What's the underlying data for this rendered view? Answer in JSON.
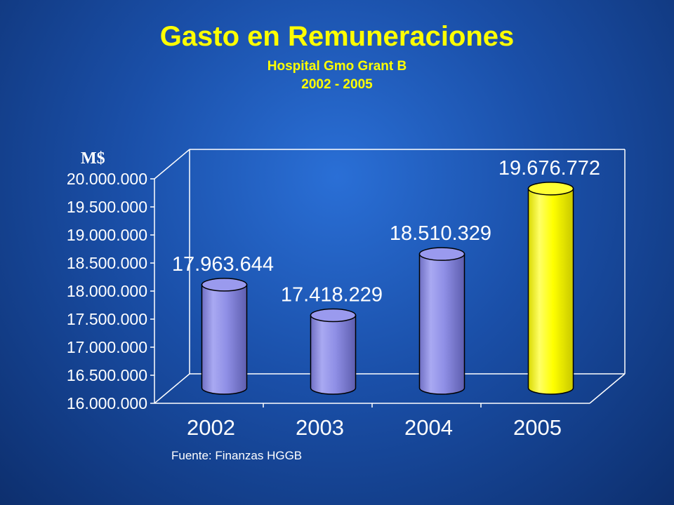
{
  "slide": {
    "title": "Gasto en Remuneraciones",
    "subtitle": "Hospital Gmo Grant B",
    "period": "2002 - 2005",
    "source": "Fuente: Finanzas HGGB"
  },
  "colors": {
    "title": "#ffff00",
    "bar": "#8f8fe6",
    "bar_highlight": "#ffff00",
    "text": "#ffffff"
  },
  "chart_data": {
    "type": "bar",
    "style": "3d-cylinder",
    "categories": [
      "2002",
      "2003",
      "2004",
      "2005"
    ],
    "values": [
      17963644,
      17418229,
      18510329,
      19676772
    ],
    "value_labels": [
      "17.963.644",
      "17.418.229",
      "18.510.329",
      "19.676.772"
    ],
    "highlight_index": 3,
    "ylabel": "M$",
    "ylim": [
      16000000,
      20000000
    ],
    "yticks": [
      16000000,
      16500000,
      17000000,
      17500000,
      18000000,
      18500000,
      19000000,
      19500000,
      20000000
    ],
    "ytick_labels": [
      "16.000.000",
      "16.500.000",
      "17.000.000",
      "17.500.000",
      "18.000.000",
      "18.500.000",
      "19.000.000",
      "19.500.000",
      "20.000.000"
    ],
    "grid": false,
    "legend": false
  }
}
